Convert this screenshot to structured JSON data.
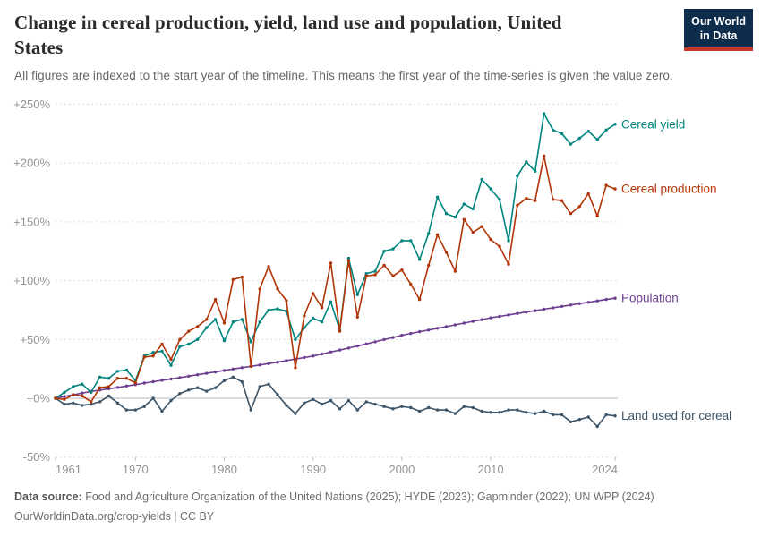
{
  "header": {
    "title": "Change in cereal production, yield, land use and population, United States",
    "title_lines": [
      "Change in cereal production, yield, land use and population, United",
      "States"
    ],
    "subtitle": "All figures are indexed to the start year of the timeline. This means the first year of the time-series is given the value zero.",
    "logo": {
      "line1": "Our World",
      "line2": "in Data"
    }
  },
  "footer": {
    "source_label": "Data source:",
    "source_text": " Food and Agriculture Organization of the United Nations (2025); HYDE (2023); Gapminder (2022); UN WPP (2024)",
    "credit": "OurWorldinData.org/crop-yields | CC BY"
  },
  "colors": {
    "grid": "#dddddd",
    "zero_line": "#b8b8b8",
    "tick_mark": "#bbbbbb",
    "axis_text": "#949494",
    "logo_bg": "#0E2D4D",
    "logo_accent": "#C5392B"
  },
  "chart_data": {
    "type": "line",
    "title": "Change in cereal production, yield, land use and population, United States",
    "xlabel": "",
    "ylabel": "",
    "xlim": [
      1961,
      2024
    ],
    "ylim": [
      -50,
      250
    ],
    "grid": "horizontal-dashed",
    "legend_position": "right-end-labels",
    "markers": true,
    "xticks": [
      1961,
      1970,
      1980,
      1990,
      2000,
      2010,
      2024
    ],
    "yticks": [
      {
        "value": 250,
        "label": "+250%"
      },
      {
        "value": 200,
        "label": "+200%"
      },
      {
        "value": 150,
        "label": "+150%"
      },
      {
        "value": 100,
        "label": "+100%"
      },
      {
        "value": 50,
        "label": "+50%"
      },
      {
        "value": 0,
        "label": "+0%"
      },
      {
        "value": -50,
        "label": "-50%"
      }
    ],
    "x": [
      1961,
      1962,
      1963,
      1964,
      1965,
      1966,
      1967,
      1968,
      1969,
      1970,
      1971,
      1972,
      1973,
      1974,
      1975,
      1976,
      1977,
      1978,
      1979,
      1980,
      1981,
      1982,
      1983,
      1984,
      1985,
      1986,
      1987,
      1988,
      1989,
      1990,
      1991,
      1992,
      1993,
      1994,
      1995,
      1996,
      1997,
      1998,
      1999,
      2000,
      2001,
      2002,
      2003,
      2004,
      2005,
      2006,
      2007,
      2008,
      2009,
      2010,
      2011,
      2012,
      2013,
      2014,
      2015,
      2016,
      2017,
      2018,
      2019,
      2020,
      2021,
      2022,
      2023,
      2024
    ],
    "series": [
      {
        "id": "land",
        "name": "Land used for cereal",
        "color": "#3C5468",
        "unit": "%",
        "values": [
          0,
          -5,
          -4,
          -6,
          -5,
          -3,
          2,
          -4,
          -10,
          -10,
          -7,
          0,
          -11,
          -2,
          4,
          7,
          9,
          6,
          9,
          15,
          18,
          14,
          -10,
          10,
          12,
          3,
          -6,
          -13,
          -4,
          -1,
          -5,
          -2,
          -9,
          -2,
          -10,
          -3,
          -5,
          -7,
          -9,
          -7,
          -8,
          -11,
          -8,
          -10,
          -10,
          -13,
          -7,
          -8,
          -11,
          -12,
          -12,
          -10,
          -10,
          -12,
          -13,
          -11,
          -14,
          -14,
          -20,
          -18,
          -16,
          -24,
          -14,
          -15
        ]
      },
      {
        "id": "population",
        "name": "Population",
        "color": "#6D3E91",
        "unit": "%",
        "values": [
          0,
          1.5,
          3,
          4.4,
          5.8,
          7,
          8.1,
          9.2,
          10.4,
          11.6,
          12.9,
          14.1,
          15.3,
          16.4,
          17.6,
          18.8,
          20,
          21.2,
          22.4,
          23.7,
          24.9,
          26,
          27.2,
          28.3,
          29.5,
          30.7,
          32,
          33.3,
          34.6,
          35.9,
          37.6,
          39.3,
          41,
          42.7,
          44.4,
          46.2,
          48,
          49.9,
          51.7,
          53.6,
          55.1,
          56.6,
          58,
          59.5,
          60.9,
          62.4,
          63.9,
          65.4,
          66.9,
          68.4,
          69.6,
          70.8,
          72.1,
          73.3,
          74.5,
          75.7,
          76.9,
          78.1,
          79.3,
          80.5,
          81.6,
          82.8,
          84,
          85.1
        ]
      },
      {
        "id": "cereal-yield",
        "name": "Cereal yield",
        "color": "#00847E",
        "unit": "%",
        "values": [
          0,
          5,
          10,
          12,
          5,
          18,
          17,
          23,
          24,
          15,
          36,
          39,
          40,
          28,
          44,
          46,
          50,
          60,
          67,
          49,
          65,
          67,
          48,
          65,
          75,
          76,
          74,
          50,
          60,
          68,
          65,
          82,
          58,
          119,
          88,
          106,
          108,
          125,
          127,
          134,
          134,
          118,
          140,
          171,
          157,
          154,
          165,
          161,
          186,
          178,
          169,
          134,
          189,
          201,
          193,
          242,
          228,
          225,
          216,
          221,
          227,
          220,
          228,
          233
        ]
      },
      {
        "id": "cereal-production",
        "name": "Cereal production",
        "color": "#B13507",
        "unit": "%",
        "values": [
          0,
          -1,
          3,
          2,
          -3,
          9,
          10,
          17,
          17,
          13,
          35,
          36,
          46,
          33,
          50,
          57,
          61,
          67,
          84,
          64,
          101,
          103,
          27,
          93,
          112,
          93,
          83,
          26,
          70,
          89,
          77,
          115,
          57,
          117,
          69,
          104,
          105,
          113,
          104,
          109,
          97,
          84,
          113,
          139,
          124,
          108,
          152,
          141,
          146,
          135,
          129,
          114,
          164,
          170,
          168,
          206,
          169,
          168,
          157,
          163,
          174,
          155,
          181,
          178
        ]
      }
    ]
  }
}
